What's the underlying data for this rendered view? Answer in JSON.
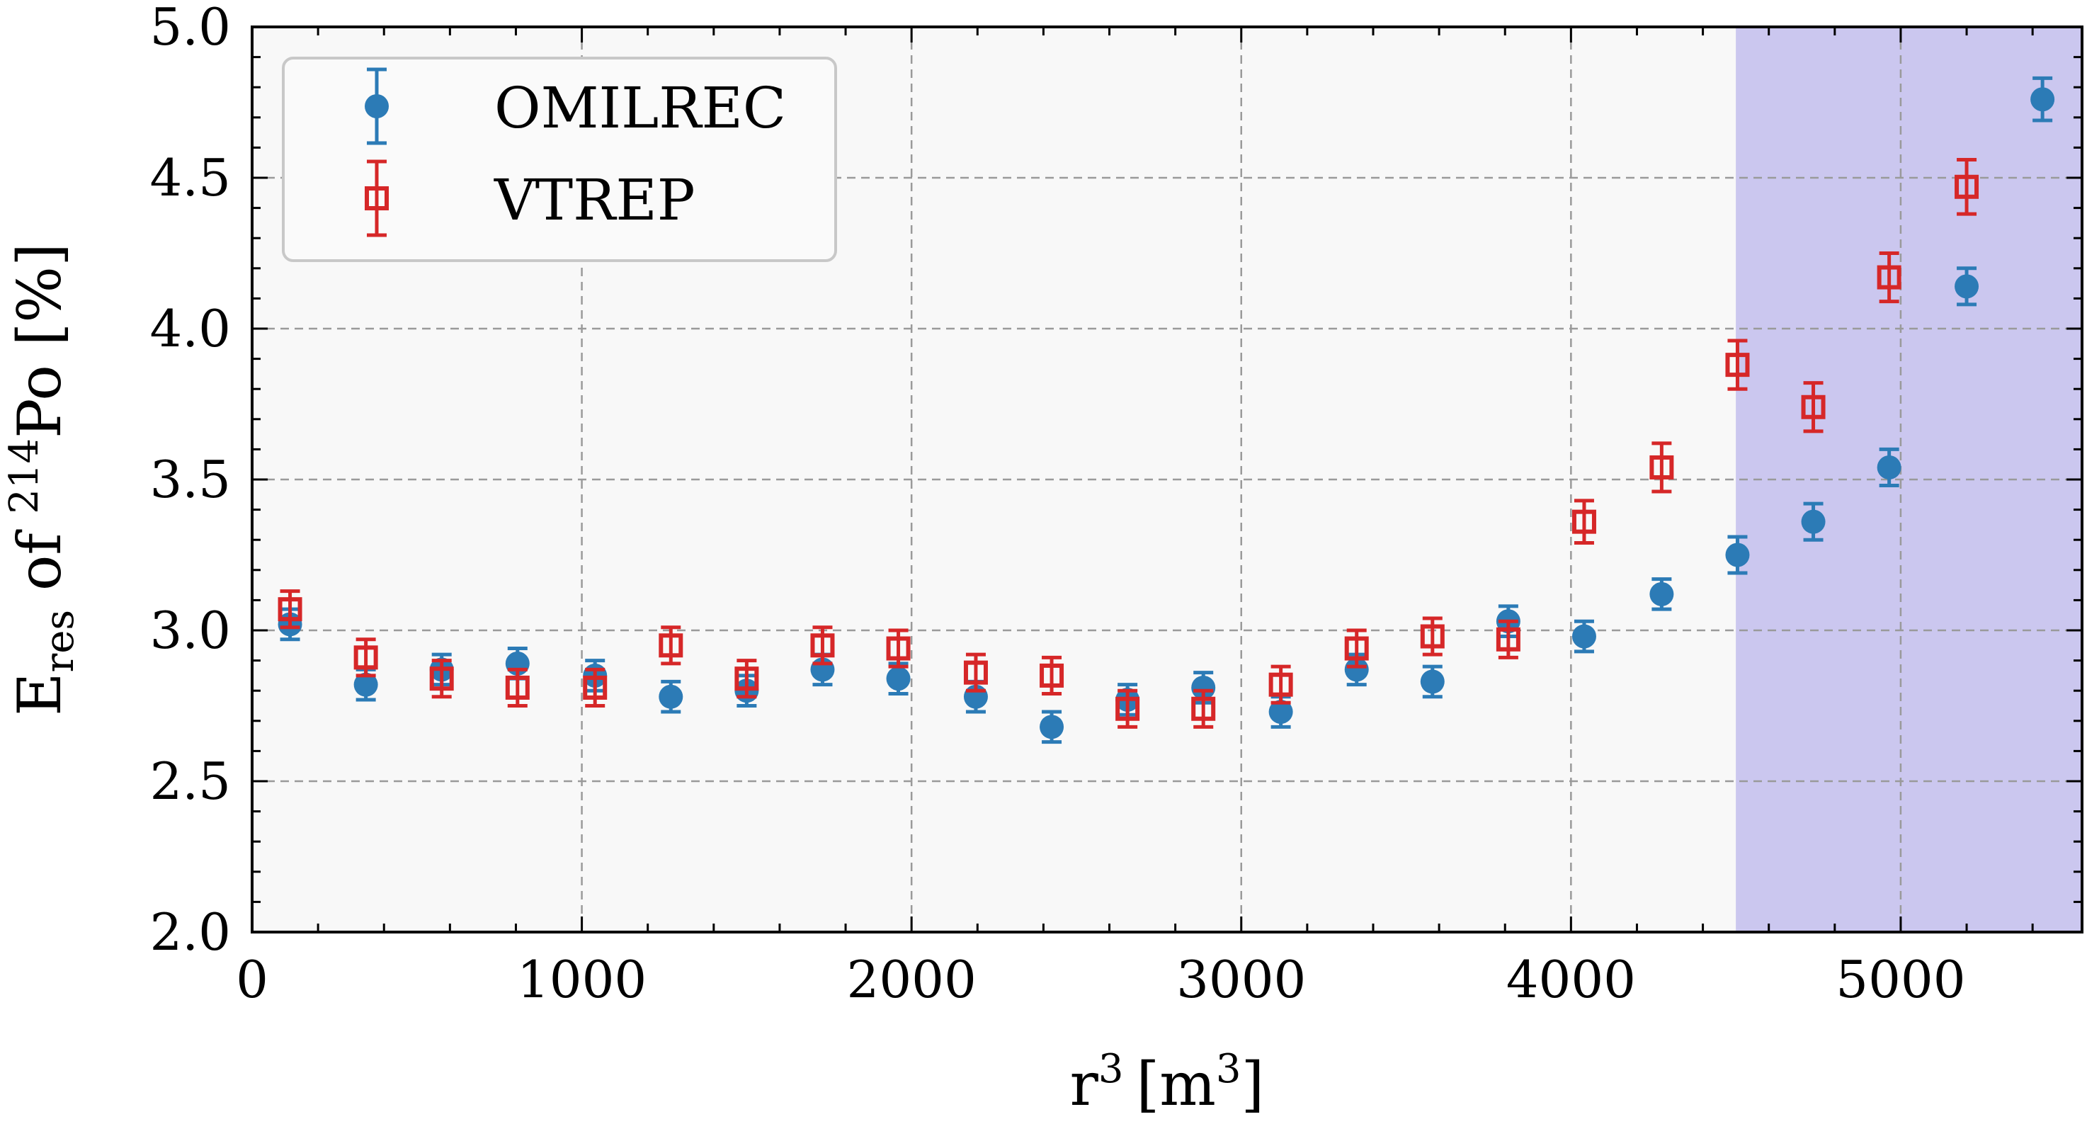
{
  "chart_data": {
    "type": "scatter",
    "xlabel": "r",
    "xlabel_sup": "3",
    "xlabel_unit": "[m",
    "xlabel_unit_sup": "3",
    "xlabel_unit_close": "]",
    "ylabel_main": "E",
    "ylabel_sub": "res",
    "ylabel_of": " of ",
    "ylabel_sup": "214",
    "ylabel_species": "Po",
    "ylabel_unit": " [%]",
    "xlim": [
      0,
      5550
    ],
    "ylim": [
      2.0,
      5.0
    ],
    "x_ticks": [
      0,
      1000,
      2000,
      3000,
      4000,
      5000
    ],
    "y_ticks": [
      2.0,
      2.5,
      3.0,
      3.5,
      4.0,
      4.5,
      5.0
    ],
    "x_tick_labels": [
      "0",
      "1000",
      "2000",
      "3000",
      "4000",
      "5000"
    ],
    "y_tick_labels": [
      "2.0",
      "2.5",
      "3.0",
      "3.5",
      "4.0",
      "4.5",
      "5.0"
    ],
    "grid": true,
    "legend_position": "top-left",
    "highlight_region": {
      "x": [
        4500,
        5550
      ],
      "color": "#c8c4ee"
    },
    "series": [
      {
        "name": "OMILREC",
        "marker": "circle",
        "color": "#2c7bb6",
        "x": [
          115,
          345,
          575,
          805,
          1040,
          1270,
          1500,
          1730,
          1960,
          2195,
          2425,
          2655,
          2885,
          3120,
          3350,
          3580,
          3810,
          4040,
          4275,
          4505,
          4735,
          4965,
          5200,
          5430
        ],
        "y": [
          3.02,
          2.82,
          2.87,
          2.89,
          2.85,
          2.78,
          2.8,
          2.87,
          2.84,
          2.78,
          2.68,
          2.77,
          2.81,
          2.73,
          2.87,
          2.83,
          3.03,
          2.98,
          3.12,
          3.25,
          3.36,
          3.54,
          4.14,
          4.76
        ],
        "err": [
          0.05,
          0.05,
          0.05,
          0.05,
          0.05,
          0.05,
          0.05,
          0.05,
          0.05,
          0.05,
          0.05,
          0.05,
          0.05,
          0.05,
          0.05,
          0.05,
          0.05,
          0.05,
          0.05,
          0.06,
          0.06,
          0.06,
          0.06,
          0.07
        ]
      },
      {
        "name": "VTREP",
        "marker": "square",
        "color": "#d62728",
        "x": [
          115,
          345,
          575,
          805,
          1040,
          1270,
          1500,
          1730,
          1960,
          2195,
          2425,
          2655,
          2885,
          3120,
          3350,
          3580,
          3810,
          4040,
          4275,
          4505,
          4735,
          4965,
          5200
        ],
        "y": [
          3.07,
          2.91,
          2.84,
          2.81,
          2.81,
          2.95,
          2.84,
          2.95,
          2.94,
          2.86,
          2.85,
          2.74,
          2.74,
          2.82,
          2.94,
          2.98,
          2.97,
          3.36,
          3.54,
          3.88,
          3.74,
          4.17,
          4.47
        ],
        "err": [
          0.06,
          0.06,
          0.06,
          0.06,
          0.06,
          0.06,
          0.06,
          0.06,
          0.06,
          0.06,
          0.06,
          0.06,
          0.06,
          0.06,
          0.06,
          0.06,
          0.06,
          0.07,
          0.08,
          0.08,
          0.08,
          0.08,
          0.09
        ]
      }
    ]
  }
}
